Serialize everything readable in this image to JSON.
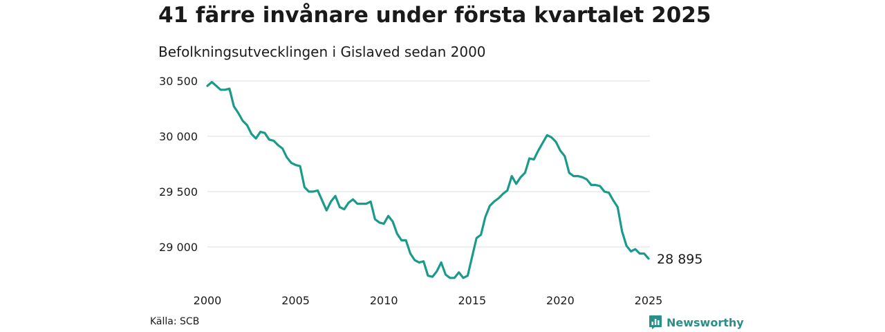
{
  "title": "41 färre invånare under första kvartalet 2025",
  "subtitle": "Befolkningsutvecklingen i Gislaved sedan 2000",
  "source": "Källa: SCB",
  "brand": {
    "name": "Newsworthy",
    "icon": "chart-bubble-icon",
    "color": "#2a8f88"
  },
  "end_label": "28 895",
  "colors": {
    "line": "#1a9a8a",
    "grid": "#dddddd"
  },
  "chart_data": {
    "type": "line",
    "title": "41 färre invånare under första kvartalet 2025",
    "subtitle": "Befolkningsutvecklingen i Gislaved sedan 2000",
    "xlabel": "",
    "ylabel": "",
    "xlim": [
      2000,
      2025
    ],
    "ylim": [
      28700,
      30500
    ],
    "x_ticks": [
      2000,
      2005,
      2010,
      2015,
      2020,
      2025
    ],
    "y_ticks": [
      29000,
      29500,
      30000,
      30500
    ],
    "y_tick_labels": [
      "29 000",
      "29 500",
      "30 000",
      "30 500"
    ],
    "grid": "horizontal",
    "x": [
      2000.0,
      2000.25,
      2000.5,
      2000.75,
      2001.0,
      2001.25,
      2001.5,
      2001.75,
      2002.0,
      2002.25,
      2002.5,
      2002.75,
      2003.0,
      2003.25,
      2003.5,
      2003.75,
      2004.0,
      2004.25,
      2004.5,
      2004.75,
      2005.0,
      2005.25,
      2005.5,
      2005.75,
      2006.0,
      2006.25,
      2006.5,
      2006.75,
      2007.0,
      2007.25,
      2007.5,
      2007.75,
      2008.0,
      2008.25,
      2008.5,
      2008.75,
      2009.0,
      2009.25,
      2009.5,
      2009.75,
      2010.0,
      2010.25,
      2010.5,
      2010.75,
      2011.0,
      2011.25,
      2011.5,
      2011.75,
      2012.0,
      2012.25,
      2012.5,
      2012.75,
      2013.0,
      2013.25,
      2013.5,
      2013.75,
      2014.0,
      2014.25,
      2014.5,
      2014.75,
      2015.0,
      2015.25,
      2015.5,
      2015.75,
      2016.0,
      2016.25,
      2016.5,
      2016.75,
      2017.0,
      2017.25,
      2017.5,
      2017.75,
      2018.0,
      2018.25,
      2018.5,
      2018.75,
      2019.0,
      2019.25,
      2019.5,
      2019.75,
      2020.0,
      2020.25,
      2020.5,
      2020.75,
      2021.0,
      2021.25,
      2021.5,
      2021.75,
      2022.0,
      2022.25,
      2022.5,
      2022.75,
      2023.0,
      2023.25,
      2023.5,
      2023.75,
      2024.0,
      2024.25,
      2024.5,
      2024.75,
      2025.0
    ],
    "series": [
      {
        "values": [
          30455,
          30490,
          30455,
          30420,
          30420,
          30430,
          30270,
          30210,
          30140,
          30100,
          30020,
          29980,
          30040,
          30030,
          29970,
          29960,
          29920,
          29890,
          29810,
          29760,
          29740,
          29730,
          29540,
          29500,
          29500,
          29510,
          29420,
          29330,
          29410,
          29460,
          29360,
          29340,
          29400,
          29430,
          29390,
          29390,
          29390,
          29410,
          29250,
          29220,
          29210,
          29280,
          29230,
          29120,
          29060,
          29060,
          28940,
          28880,
          28860,
          28870,
          28740,
          28730,
          28780,
          28860,
          28750,
          28720,
          28720,
          28770,
          28720,
          28740,
          28910,
          29080,
          29110,
          29270,
          29370,
          29410,
          29440,
          29480,
          29510,
          29640,
          29570,
          29630,
          29670,
          29800,
          29790,
          29870,
          29940,
          30010,
          29990,
          29950,
          29870,
          29820,
          29670,
          29640,
          29640,
          29630,
          29610,
          29560,
          29560,
          29550,
          29500,
          29490,
          29420,
          29360,
          29140,
          29010,
          28960,
          28980,
          28940,
          28940,
          28895
        ]
      }
    ]
  }
}
